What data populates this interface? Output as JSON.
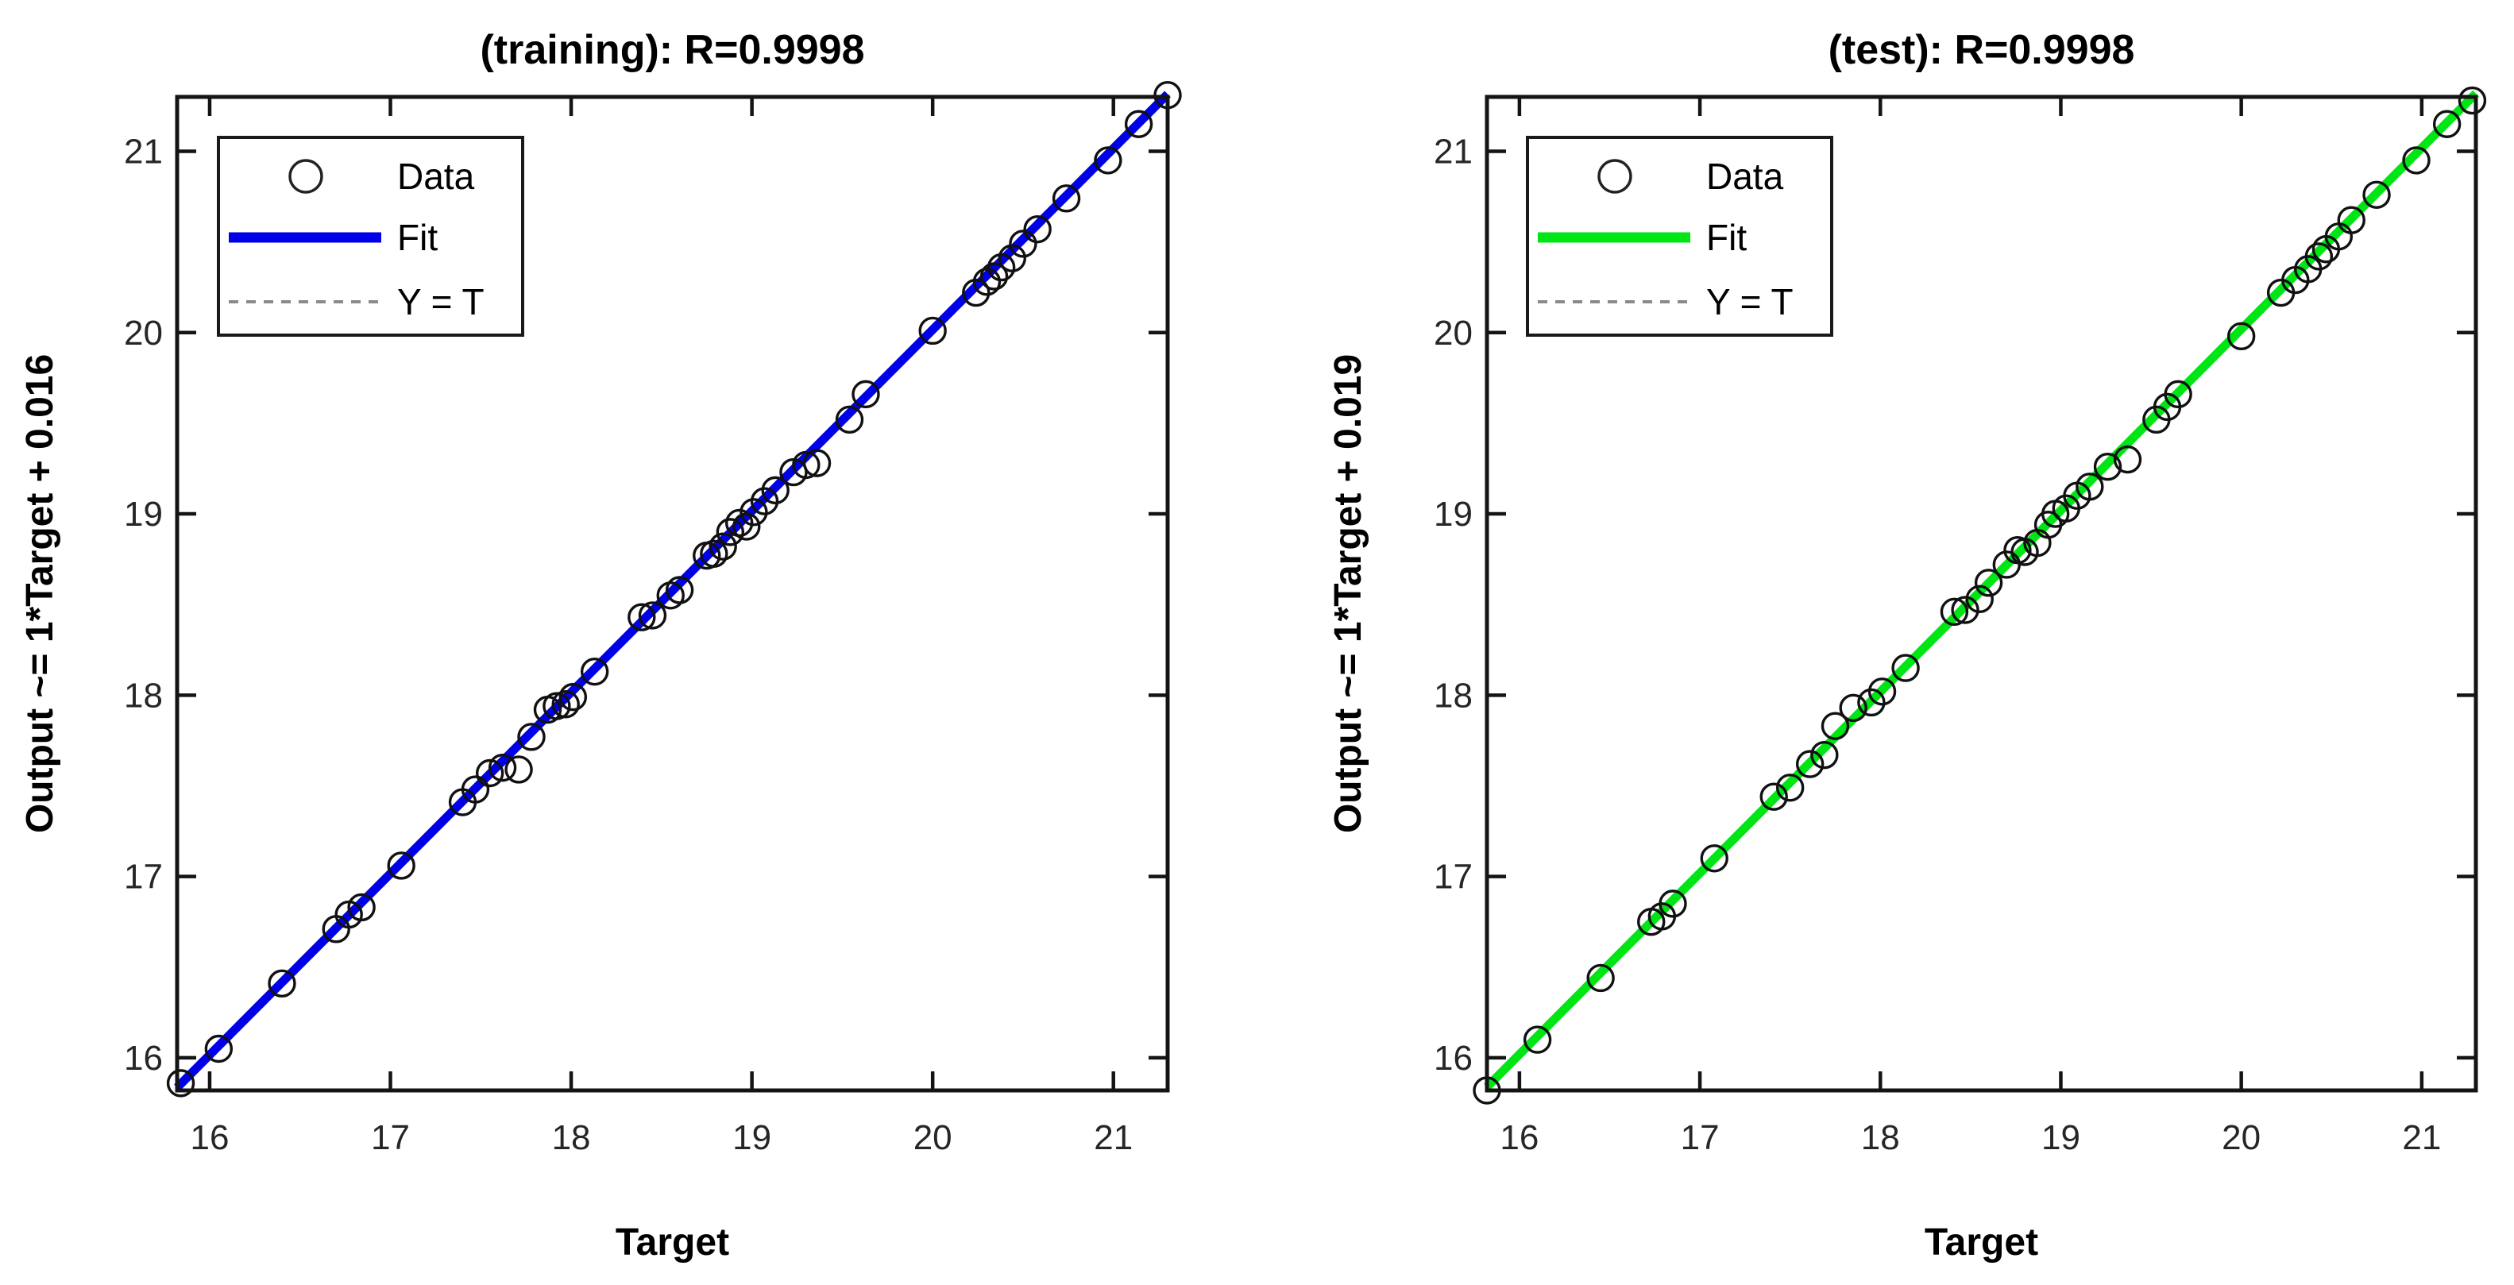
{
  "chart_data": [
    {
      "type": "scatter",
      "title": "(training): R=0.9998",
      "xlabel": "Target",
      "ylabel": "Output ~= 1*Target + 0.016",
      "legend": {
        "data": "Data",
        "fit": "Fit",
        "identity": "Y = T"
      },
      "legend_position": "upper-left",
      "axis": {
        "min": 15.82,
        "max": 21.3,
        "xticks": [
          16,
          17,
          18,
          19,
          20,
          21
        ],
        "yticks": [
          16,
          17,
          18,
          19,
          20,
          21
        ],
        "grid": false
      },
      "fit": {
        "slope": 1,
        "intercept": 0.016,
        "color": "#0000E8"
      },
      "identity_line": {
        "style": "dashed",
        "color": "#555555"
      },
      "marker": {
        "shape": "circle",
        "color": "#111111"
      },
      "points": [
        [
          15.84,
          15.86
        ],
        [
          16.05,
          16.05
        ],
        [
          16.4,
          16.41
        ],
        [
          16.7,
          16.71
        ],
        [
          16.77,
          16.79
        ],
        [
          16.84,
          16.83
        ],
        [
          17.06,
          17.06
        ],
        [
          17.4,
          17.41
        ],
        [
          17.47,
          17.48
        ],
        [
          17.55,
          17.57
        ],
        [
          17.62,
          17.6
        ],
        [
          17.71,
          17.59
        ],
        [
          17.78,
          17.77
        ],
        [
          17.87,
          17.92
        ],
        [
          17.92,
          17.94
        ],
        [
          17.97,
          17.95
        ],
        [
          18.01,
          17.99
        ],
        [
          18.13,
          18.13
        ],
        [
          18.39,
          18.43
        ],
        [
          18.45,
          18.44
        ],
        [
          18.55,
          18.55
        ],
        [
          18.6,
          18.58
        ],
        [
          18.75,
          18.77
        ],
        [
          18.79,
          18.78
        ],
        [
          18.84,
          18.82
        ],
        [
          18.88,
          18.9
        ],
        [
          18.93,
          18.95
        ],
        [
          18.97,
          18.93
        ],
        [
          19.01,
          19.01
        ],
        [
          19.07,
          19.07
        ],
        [
          19.13,
          19.13
        ],
        [
          19.23,
          19.23
        ],
        [
          19.3,
          19.27
        ],
        [
          19.36,
          19.28
        ],
        [
          19.54,
          19.52
        ],
        [
          19.63,
          19.66
        ],
        [
          20.0,
          20.01
        ],
        [
          20.24,
          20.22
        ],
        [
          20.3,
          20.28
        ],
        [
          20.34,
          20.31
        ],
        [
          20.38,
          20.36
        ],
        [
          20.44,
          20.41
        ],
        [
          20.5,
          20.49
        ],
        [
          20.58,
          20.57
        ],
        [
          20.74,
          20.74
        ],
        [
          20.97,
          20.95
        ],
        [
          21.14,
          21.15
        ],
        [
          21.3,
          21.31
        ]
      ]
    },
    {
      "type": "scatter",
      "title": "(test): R=0.9998",
      "xlabel": "Target",
      "ylabel": "Output ~= 1*Target + 0.019",
      "legend": {
        "data": "Data",
        "fit": "Fit",
        "identity": "Y = T"
      },
      "legend_position": "upper-left",
      "axis": {
        "min": 15.82,
        "max": 21.3,
        "xticks": [
          16,
          17,
          18,
          19,
          20,
          21
        ],
        "yticks": [
          16,
          17,
          18,
          19,
          20,
          21
        ],
        "grid": false
      },
      "fit": {
        "slope": 1,
        "intercept": 0.019,
        "color": "#00E614"
      },
      "identity_line": {
        "style": "dashed",
        "color": "#555555"
      },
      "marker": {
        "shape": "circle",
        "color": "#111111"
      },
      "points": [
        [
          15.82,
          15.82
        ],
        [
          16.1,
          16.1
        ],
        [
          16.45,
          16.44
        ],
        [
          16.73,
          16.75
        ],
        [
          16.79,
          16.78
        ],
        [
          16.85,
          16.85
        ],
        [
          17.08,
          17.1
        ],
        [
          17.41,
          17.44
        ],
        [
          17.5,
          17.49
        ],
        [
          17.61,
          17.62
        ],
        [
          17.69,
          17.67
        ],
        [
          17.75,
          17.83
        ],
        [
          17.85,
          17.93
        ],
        [
          17.95,
          17.96
        ],
        [
          18.01,
          18.02
        ],
        [
          18.14,
          18.15
        ],
        [
          18.41,
          18.46
        ],
        [
          18.47,
          18.47
        ],
        [
          18.55,
          18.53
        ],
        [
          18.6,
          18.62
        ],
        [
          18.7,
          18.72
        ],
        [
          18.76,
          18.8
        ],
        [
          18.8,
          18.79
        ],
        [
          18.87,
          18.84
        ],
        [
          18.93,
          18.94
        ],
        [
          18.97,
          19.0
        ],
        [
          19.03,
          19.03
        ],
        [
          19.09,
          19.1
        ],
        [
          19.16,
          19.15
        ],
        [
          19.26,
          19.26
        ],
        [
          19.37,
          19.3
        ],
        [
          19.53,
          19.52
        ],
        [
          19.59,
          19.59
        ],
        [
          19.65,
          19.66
        ],
        [
          20.0,
          19.98
        ],
        [
          20.22,
          20.22
        ],
        [
          20.3,
          20.29
        ],
        [
          20.37,
          20.35
        ],
        [
          20.43,
          20.42
        ],
        [
          20.47,
          20.46
        ],
        [
          20.54,
          20.53
        ],
        [
          20.61,
          20.62
        ],
        [
          20.75,
          20.76
        ],
        [
          20.97,
          20.95
        ],
        [
          21.14,
          21.15
        ],
        [
          21.28,
          21.28
        ]
      ]
    }
  ]
}
